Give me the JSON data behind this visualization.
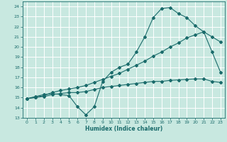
{
  "xlabel": "Humidex (Indice chaleur)",
  "bg_color": "#c8e8e0",
  "grid_color": "#b0d8d0",
  "line_color": "#1a6b6b",
  "xlim": [
    -0.5,
    23.5
  ],
  "ylim": [
    13,
    24.5
  ],
  "yticks": [
    13,
    14,
    15,
    16,
    17,
    18,
    19,
    20,
    21,
    22,
    23,
    24
  ],
  "xticks": [
    0,
    1,
    2,
    3,
    4,
    5,
    6,
    7,
    8,
    9,
    10,
    11,
    12,
    13,
    14,
    15,
    16,
    17,
    18,
    19,
    20,
    21,
    22,
    23
  ],
  "line1_x": [
    0,
    1,
    2,
    3,
    4,
    5,
    6,
    7,
    8,
    9,
    10,
    11,
    12,
    13,
    14,
    15,
    16,
    17,
    18,
    19,
    20,
    21,
    22,
    23
  ],
  "line1_y": [
    14.9,
    15.1,
    15.3,
    15.4,
    15.3,
    15.2,
    14.1,
    13.3,
    14.1,
    16.6,
    17.5,
    18.0,
    18.3,
    19.5,
    21.0,
    22.9,
    23.8,
    23.9,
    23.3,
    22.9,
    22.1,
    21.5,
    19.5,
    17.5
  ],
  "line2_x": [
    0,
    1,
    2,
    3,
    4,
    5,
    6,
    7,
    8,
    9,
    10,
    11,
    12,
    13,
    14,
    15,
    16,
    17,
    18,
    19,
    20,
    21,
    22,
    23
  ],
  "line2_y": [
    14.9,
    15.0,
    15.1,
    15.3,
    15.4,
    15.5,
    15.5,
    15.6,
    15.8,
    16.0,
    16.1,
    16.2,
    16.3,
    16.4,
    16.5,
    16.6,
    16.6,
    16.7,
    16.75,
    16.8,
    16.85,
    16.85,
    16.6,
    16.5
  ],
  "line3_x": [
    0,
    1,
    2,
    3,
    4,
    5,
    6,
    7,
    8,
    9,
    10,
    11,
    12,
    13,
    14,
    15,
    16,
    17,
    18,
    19,
    20,
    21,
    22,
    23
  ],
  "line3_y": [
    14.9,
    15.05,
    15.2,
    15.5,
    15.7,
    15.85,
    16.0,
    16.2,
    16.5,
    16.8,
    17.1,
    17.4,
    17.8,
    18.2,
    18.6,
    19.1,
    19.5,
    20.0,
    20.4,
    20.9,
    21.2,
    21.5,
    21.0,
    20.5
  ]
}
